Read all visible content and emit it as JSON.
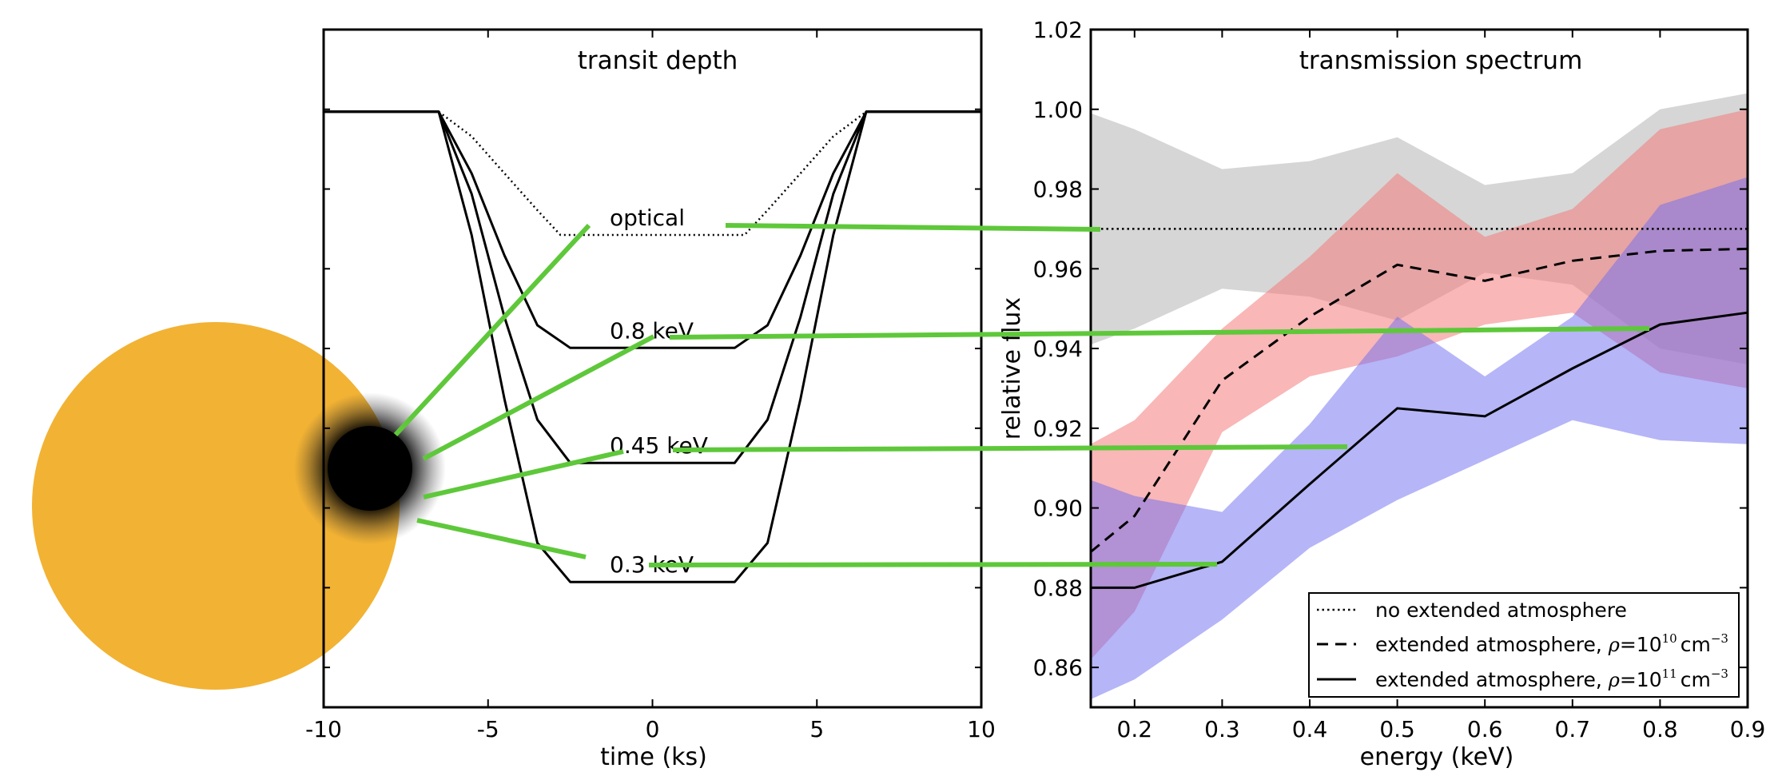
{
  "colors": {
    "star": "#f2b233",
    "planet": "#000000",
    "green_connector": "#5ec83a",
    "band_no_atmosphere": "#c8c8c8",
    "band_rho10": "#f47b7b",
    "band_rho11": "#6c6cf2"
  },
  "illustration": {
    "star_label": "",
    "planet_label": ""
  },
  "chart_data": [
    {
      "type": "line",
      "title": "transit depth",
      "xlabel": "time (ks)",
      "ylabel": "",
      "xlim": [
        -10,
        10
      ],
      "ylim": [
        0.855,
        1.02
      ],
      "x_ticks": [
        -10,
        -5,
        0,
        5,
        10
      ],
      "x_tick_labels": [
        "-10",
        "-5",
        "0",
        "5",
        "10"
      ],
      "grid": false,
      "series": [
        {
          "name": "optical",
          "style": "dotted",
          "depth": 0.97,
          "ingress_start": 6.5,
          "ingress_end": 2.8,
          "points": [
            [
              -10,
              1.0
            ],
            [
              -6.5,
              1.0
            ],
            [
              -5.5,
              0.994
            ],
            [
              -4.5,
              0.985
            ],
            [
              -3.5,
              0.976
            ],
            [
              -2.8,
              0.97
            ],
            [
              0,
              0.97
            ],
            [
              2.8,
              0.97
            ],
            [
              3.5,
              0.976
            ],
            [
              4.5,
              0.985
            ],
            [
              5.5,
              0.994
            ],
            [
              6.5,
              1.0
            ],
            [
              10,
              1.0
            ]
          ]
        },
        {
          "name": "0.8 keV",
          "style": "solid",
          "depth": 0.9425,
          "points": [
            [
              -10,
              1.0
            ],
            [
              -6.5,
              1.0
            ],
            [
              -5.5,
              0.985
            ],
            [
              -4.5,
              0.965
            ],
            [
              -3.5,
              0.948
            ],
            [
              -2.5,
              0.9425
            ],
            [
              0,
              0.9425
            ],
            [
              2.5,
              0.9425
            ],
            [
              3.5,
              0.948
            ],
            [
              4.5,
              0.965
            ],
            [
              5.5,
              0.985
            ],
            [
              6.5,
              1.0
            ],
            [
              10,
              1.0
            ]
          ]
        },
        {
          "name": "0.45 keV",
          "style": "solid",
          "depth": 0.9145,
          "points": [
            [
              -10,
              1.0
            ],
            [
              -6.5,
              1.0
            ],
            [
              -5.5,
              0.98
            ],
            [
              -4.5,
              0.95
            ],
            [
              -3.5,
              0.925
            ],
            [
              -2.5,
              0.9145
            ],
            [
              0,
              0.9145
            ],
            [
              2.5,
              0.9145
            ],
            [
              3.5,
              0.925
            ],
            [
              4.5,
              0.95
            ],
            [
              5.5,
              0.98
            ],
            [
              6.5,
              1.0
            ],
            [
              10,
              1.0
            ]
          ]
        },
        {
          "name": "0.3 keV",
          "style": "solid",
          "depth": 0.8855,
          "points": [
            [
              -10,
              1.0
            ],
            [
              -6.5,
              1.0
            ],
            [
              -5.5,
              0.97
            ],
            [
              -4.5,
              0.93
            ],
            [
              -3.5,
              0.895
            ],
            [
              -2.5,
              0.8855
            ],
            [
              0,
              0.8855
            ],
            [
              2.5,
              0.8855
            ],
            [
              3.5,
              0.895
            ],
            [
              4.5,
              0.93
            ],
            [
              5.5,
              0.97
            ],
            [
              6.5,
              1.0
            ],
            [
              10,
              1.0
            ]
          ]
        }
      ]
    },
    {
      "type": "line",
      "title": "transmission spectrum",
      "xlabel": "energy (keV)",
      "ylabel": "relative flux",
      "xlim": [
        0.15,
        0.9
      ],
      "ylim": [
        0.85,
        1.02
      ],
      "x_ticks": [
        0.2,
        0.3,
        0.4,
        0.5,
        0.6,
        0.7,
        0.8,
        0.9
      ],
      "x_tick_labels": [
        "0.2",
        "0.3",
        "0.4",
        "0.5",
        "0.6",
        "0.7",
        "0.8",
        "0.9"
      ],
      "y_ticks": [
        0.86,
        0.88,
        0.9,
        0.92,
        0.94,
        0.96,
        0.98,
        1.0,
        1.02
      ],
      "y_tick_labels": [
        "0.86",
        "0.88",
        "0.90",
        "0.92",
        "0.94",
        "0.96",
        "0.98",
        "1.00",
        "1.02"
      ],
      "grid": false,
      "legend_position": "bottom-right",
      "x": [
        0.15,
        0.2,
        0.3,
        0.4,
        0.5,
        0.6,
        0.7,
        0.8,
        0.9
      ],
      "series": [
        {
          "name": "no extended atmosphere",
          "style": "dotted",
          "values": [
            0.97,
            0.97,
            0.97,
            0.97,
            0.97,
            0.97,
            0.97,
            0.97,
            0.97
          ],
          "band_upper": [
            0.999,
            0.995,
            0.985,
            0.987,
            0.993,
            0.981,
            0.984,
            1.0,
            1.004
          ],
          "band_lower": [
            0.941,
            0.945,
            0.955,
            0.953,
            0.947,
            0.959,
            0.956,
            0.94,
            0.936
          ]
        },
        {
          "name": "extended atmosphere, ρ=10¹⁰ cm⁻³",
          "legend_prefix": "extended atmosphere, ",
          "legend_exp": "10",
          "style": "dashed",
          "values": [
            0.889,
            0.898,
            0.932,
            0.948,
            0.961,
            0.957,
            0.962,
            0.9645,
            0.965
          ],
          "band_upper": [
            0.916,
            0.922,
            0.945,
            0.963,
            0.984,
            0.968,
            0.975,
            0.995,
            1.0
          ],
          "band_lower": [
            0.862,
            0.874,
            0.919,
            0.933,
            0.938,
            0.946,
            0.949,
            0.934,
            0.93
          ]
        },
        {
          "name": "extended atmosphere, ρ=10¹¹ cm⁻³",
          "legend_prefix": "extended atmosphere, ",
          "legend_exp": "11",
          "style": "solid",
          "values": [
            0.88,
            0.88,
            0.8865,
            0.906,
            0.925,
            0.923,
            0.935,
            0.946,
            0.949
          ],
          "band_upper": [
            0.907,
            0.903,
            0.899,
            0.921,
            0.948,
            0.933,
            0.948,
            0.976,
            0.983
          ],
          "band_lower": [
            0.852,
            0.857,
            0.872,
            0.89,
            0.902,
            0.912,
            0.922,
            0.917,
            0.916
          ]
        }
      ],
      "legend_rho_symbol": "ρ",
      "legend_unit": "cm",
      "legend_unit_exp": "−3"
    }
  ]
}
